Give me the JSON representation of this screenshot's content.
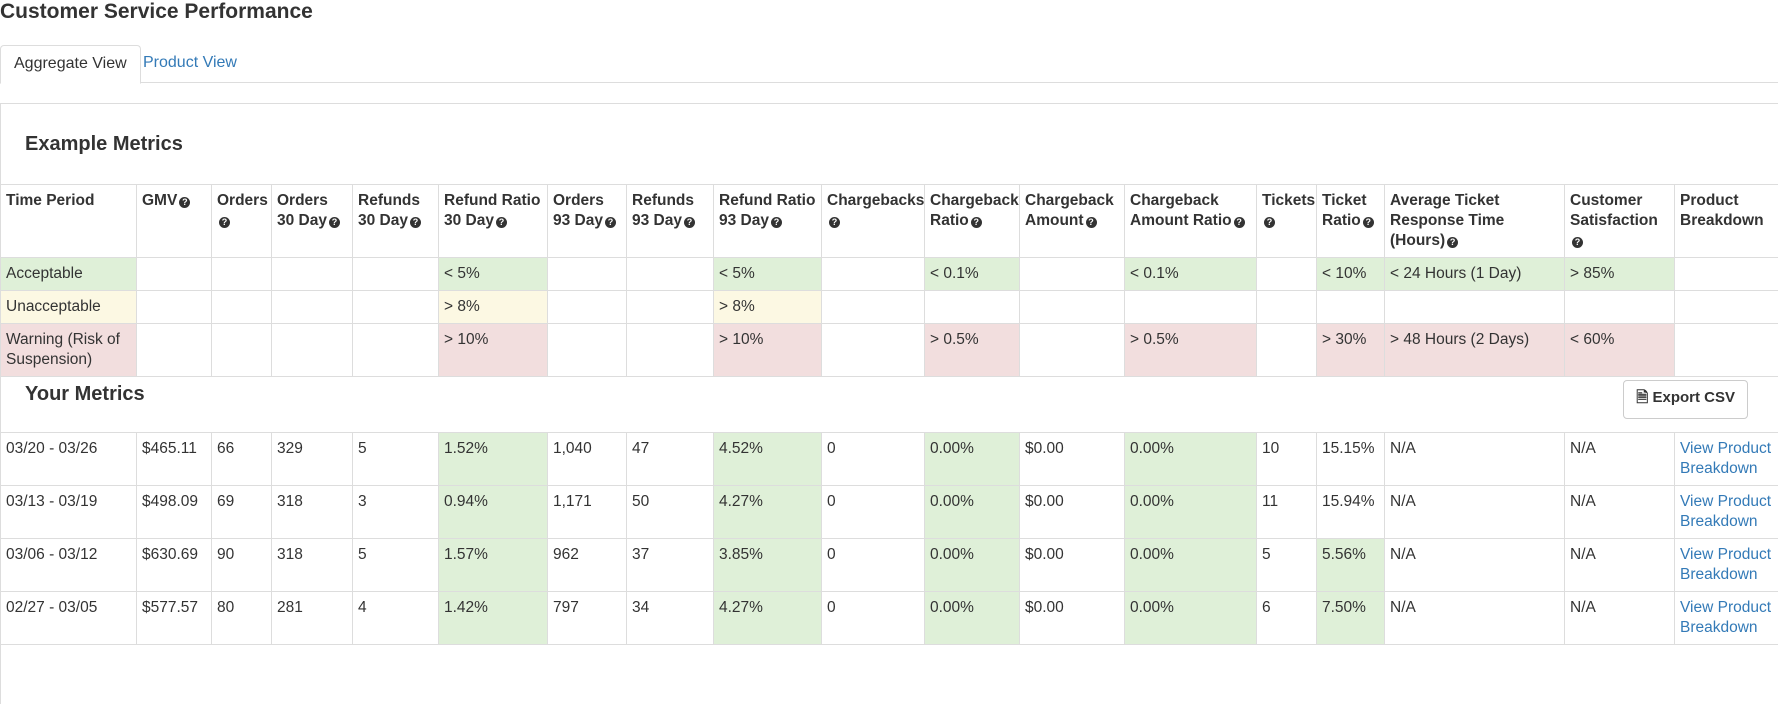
{
  "title": "Customer Service Performance",
  "tabs": [
    "Aggregate View",
    "Product View"
  ],
  "example": {
    "title": "Example Metrics",
    "headers": [
      "Time Period",
      "GMV",
      "Orders",
      "Orders 30 Day",
      "Refunds 30 Day",
      "Refund Ratio 30 Day",
      "Orders 93 Day",
      "Refunds 93 Day",
      "Refund Ratio 93 Day",
      "Chargebacks",
      "Chargeback Ratio",
      "Chargeback Amount",
      "Chargeback Amount Ratio",
      "Tickets",
      "Ticket Ratio",
      "Average Ticket Response Time (Hours)",
      "Customer Satisfaction",
      "Product Breakdown"
    ],
    "rows": [
      {
        "color": "#dff0d8",
        "cells": [
          "Acceptable",
          null,
          null,
          null,
          null,
          "< 5%",
          null,
          null,
          "< 5%",
          null,
          "< 0.1%",
          null,
          "< 0.1%",
          null,
          "< 10%",
          "< 24 Hours (1 Day)",
          "> 85%",
          null
        ]
      },
      {
        "color": "#fcf8e3",
        "cells": [
          "Unacceptable",
          null,
          null,
          null,
          null,
          "> 8%",
          null,
          null,
          "> 8%",
          null,
          null,
          null,
          null,
          null,
          null,
          null,
          null,
          null
        ]
      },
      {
        "color": "#f2dede",
        "cells": [
          "Warning (Risk of Suspension)",
          null,
          null,
          null,
          null,
          "> 10%",
          null,
          null,
          "> 10%",
          null,
          "> 0.5%",
          null,
          "> 0.5%",
          null,
          "> 30%",
          "> 48 Hours (2 Days)",
          "< 60%",
          null
        ]
      }
    ]
  },
  "your": {
    "title": "Your Metrics",
    "export": "Export CSV",
    "color": "#dff0d8",
    "rows": [
      {
        "green": [
          5,
          8,
          10,
          12
        ],
        "cells": [
          "03/20 - 03/26",
          "$465.11",
          "66",
          "329",
          "5",
          "1.52%",
          "1,040",
          "47",
          "4.52%",
          "0",
          "0.00%",
          "$0.00",
          "0.00%",
          "10",
          "15.15%",
          "N/A",
          "N/A",
          "View Product Breakdown"
        ]
      },
      {
        "green": [
          5,
          8,
          10,
          12
        ],
        "cells": [
          "03/13 - 03/19",
          "$498.09",
          "69",
          "318",
          "3",
          "0.94%",
          "1,171",
          "50",
          "4.27%",
          "0",
          "0.00%",
          "$0.00",
          "0.00%",
          "11",
          "15.94%",
          "N/A",
          "N/A",
          "View Product Breakdown"
        ]
      },
      {
        "green": [
          5,
          8,
          10,
          12,
          14
        ],
        "cells": [
          "03/06 - 03/12",
          "$630.69",
          "90",
          "318",
          "5",
          "1.57%",
          "962",
          "37",
          "3.85%",
          "0",
          "0.00%",
          "$0.00",
          "0.00%",
          "5",
          "5.56%",
          "N/A",
          "N/A",
          "View Product Breakdown"
        ]
      },
      {
        "green": [
          5,
          8,
          10,
          12,
          14
        ],
        "cells": [
          "02/27 - 03/05",
          "$577.57",
          "80",
          "281",
          "4",
          "1.42%",
          "797",
          "34",
          "4.27%",
          "0",
          "0.00%",
          "$0.00",
          "0.00%",
          "6",
          "7.50%",
          "N/A",
          "N/A",
          "View Product Breakdown"
        ]
      }
    ]
  }
}
